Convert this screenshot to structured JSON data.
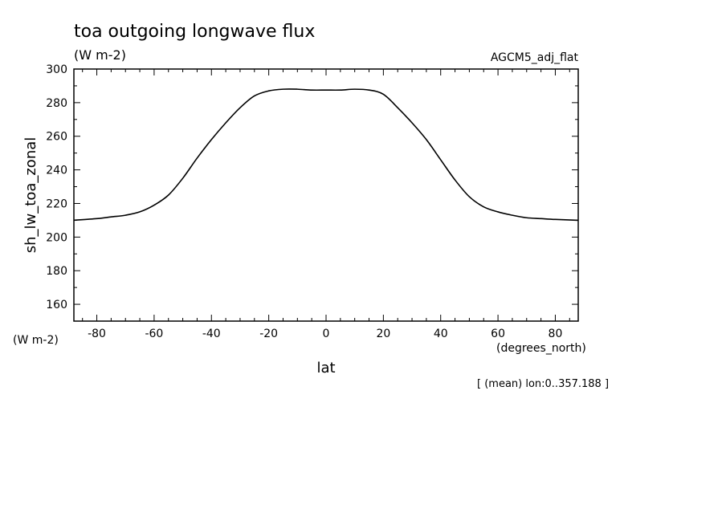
{
  "chart_data": {
    "type": "line",
    "title": "toa outgoing longwave flux",
    "subtitle": "(W m-2)",
    "dataset_label": "AGCM5_adj_flat",
    "xlabel": "lat",
    "xunits": "(degrees_north)",
    "ylabel": "sh_lw_toa_zonal",
    "yunits": "(W m-2)",
    "footnote": "[ (mean) lon:0..357.188 ]",
    "xlim": [
      -88,
      88
    ],
    "ylim": [
      150,
      300
    ],
    "xticks": [
      -80,
      -60,
      -40,
      -20,
      0,
      20,
      40,
      60,
      80
    ],
    "xtick_labels": [
      "-80",
      "-60",
      "-40",
      "-20",
      "0",
      "20",
      "40",
      "60",
      "80"
    ],
    "yticks": [
      160,
      180,
      200,
      220,
      240,
      260,
      280,
      300
    ],
    "ytick_labels": [
      "160",
      "180",
      "200",
      "220",
      "240",
      "260",
      "280",
      "300"
    ],
    "grid": false,
    "series": [
      {
        "x": [
          -88,
          -80,
          -75,
          -70,
          -65,
          -60,
          -55,
          -50,
          -45,
          -40,
          -35,
          -30,
          -25,
          -20,
          -15,
          -10,
          -5,
          0,
          5,
          10,
          15,
          20,
          25,
          30,
          35,
          40,
          45,
          50,
          55,
          60,
          65,
          70,
          75,
          80,
          88
        ],
        "y": [
          210,
          211,
          212,
          213,
          215,
          219,
          225,
          235,
          247,
          258,
          268,
          277,
          284,
          287,
          288,
          288,
          287.5,
          287.5,
          287.5,
          288,
          287.5,
          285,
          277,
          268,
          258,
          246,
          234,
          224,
          218,
          215,
          213,
          211.5,
          211,
          210.5,
          210
        ]
      }
    ]
  }
}
